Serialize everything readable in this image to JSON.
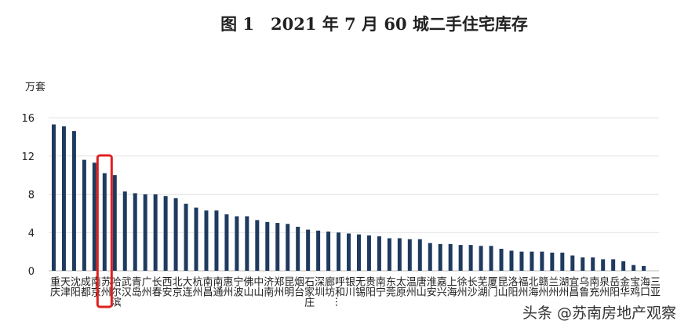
{
  "chart_data": {
    "type": "bar",
    "title": "图 1　2021 年 7 月 60 城二手住宅库存",
    "y_label": "万套",
    "watermark": "头条 @苏南房地产观察",
    "categories": [
      "重庆",
      "天津",
      "沈阳",
      "成都",
      "南京",
      "苏州",
      "哈尔滨",
      "武汉",
      "青岛",
      "广州",
      "长春",
      "西安",
      "北京",
      "大连",
      "杭州",
      "南昌",
      "南通",
      "惠州",
      "宁波",
      "佛山",
      "中山",
      "济南",
      "郑州",
      "昆明",
      "烟台",
      "石家庄",
      "深圳",
      "廊坊",
      "呼和…",
      "银川",
      "无锡",
      "贵阳",
      "南宁",
      "东莞",
      "太原",
      "温州",
      "唐山",
      "淮安",
      "嘉兴",
      "上海",
      "徐州",
      "长沙",
      "芜湖",
      "厦门",
      "昆山",
      "洛阳",
      "福州",
      "北海",
      "赣州",
      "兰州",
      "湖州",
      "宜昌",
      "乌鲁",
      "南充",
      "泉州",
      "岳阳",
      "金华",
      "宝鸡",
      "海口",
      "三亚"
    ],
    "values": [
      15.3,
      15.1,
      14.6,
      11.6,
      11.3,
      10.2,
      10.0,
      8.3,
      8.1,
      8.0,
      8.0,
      7.8,
      7.6,
      7.0,
      6.6,
      6.3,
      6.3,
      5.9,
      5.7,
      5.7,
      5.3,
      5.1,
      5.0,
      4.9,
      4.6,
      4.3,
      4.2,
      4.1,
      4.0,
      3.9,
      3.8,
      3.7,
      3.6,
      3.4,
      3.4,
      3.3,
      3.3,
      2.9,
      2.8,
      2.8,
      2.7,
      2.7,
      2.6,
      2.6,
      2.3,
      2.1,
      2.0,
      2.0,
      2.0,
      1.9,
      1.9,
      1.6,
      1.4,
      1.4,
      1.2,
      1.2,
      1.0,
      0.6,
      0.5,
      0
    ],
    "color": "#1f3a5f",
    "ylim": [
      0,
      16
    ],
    "yticks": [
      0,
      4,
      8,
      12,
      16
    ],
    "grid": true
  }
}
